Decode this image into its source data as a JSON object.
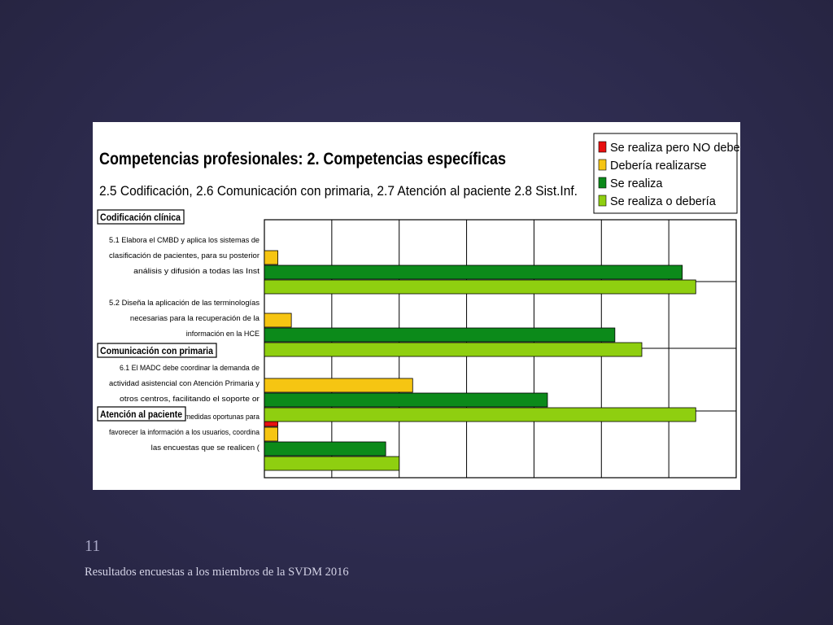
{
  "slide": {
    "number": "11",
    "footer": "Resultados encuestas a los miembros de la SVDM 2016"
  },
  "chart_data": {
    "type": "bar",
    "orientation": "horizontal",
    "title": "Competencias profesionales: 2. Competencias específicas",
    "subtitle": "2.5 Codificación,  2.6 Comunicación con primaria, 2.7 Atención al paciente 2.8 Sist.Inf.",
    "xlim": [
      0,
      7
    ],
    "grid": true,
    "legend_position": "top-right",
    "sections": [
      {
        "label": "Codificación clínica",
        "item_index": 0
      },
      {
        "label": "Comunicación con primaria",
        "item_index": 2
      },
      {
        "label": "Atención al paciente",
        "item_index": 3
      }
    ],
    "categories": [
      "5.1 Elabora el CMBD y aplica los sistemas de clasificación de pacientes, para su posterior análisis y difusión a todas las Inst",
      "5.2 Diseña la aplicación de las terminologías necesarias para la recuperación de la información en la HCE",
      "6.1 El MADC debe coordinar la demanda de actividad asistencial con Atención Primaria y otros centros, facilitando el soporte or",
      "7.1 El MADC adopta las medidas oportunas para favorecer la información a los usuarios, coordina las encuestas que se realicen ("
    ],
    "category_lines": [
      [
        "5.1 Elabora el CMBD y aplica los sistemas de",
        "clasificación de pacientes, para su posterior",
        "análisis y difusión a todas las Inst"
      ],
      [
        "5.2 Diseña la aplicación de las terminologías",
        "necesarias para la recuperación de la",
        "información en la HCE"
      ],
      [
        "6.1 El MADC debe coordinar la demanda de",
        "actividad asistencial con Atención Primaria y",
        "otros centros, facilitando el soporte or"
      ],
      [
        "7.1 El MADC adopta las medidas oportunas para",
        "favorecer la información a los usuarios, coordina",
        "las encuestas que se realicen ("
      ]
    ],
    "series": [
      {
        "name": "Se realiza pero NO debería",
        "color": "#e81010",
        "values": [
          0,
          0,
          0,
          0.2
        ]
      },
      {
        "name": "Debería realizarse",
        "color": "#f6c512",
        "values": [
          0.2,
          0.4,
          2.2,
          0.2
        ]
      },
      {
        "name": "Se realiza",
        "color": "#0c8a1a",
        "values": [
          6.2,
          5.2,
          4.2,
          1.8
        ]
      },
      {
        "name": "Se realiza o debería",
        "color": "#8fcf10",
        "values": [
          6.4,
          5.6,
          6.4,
          2.0
        ]
      }
    ]
  }
}
